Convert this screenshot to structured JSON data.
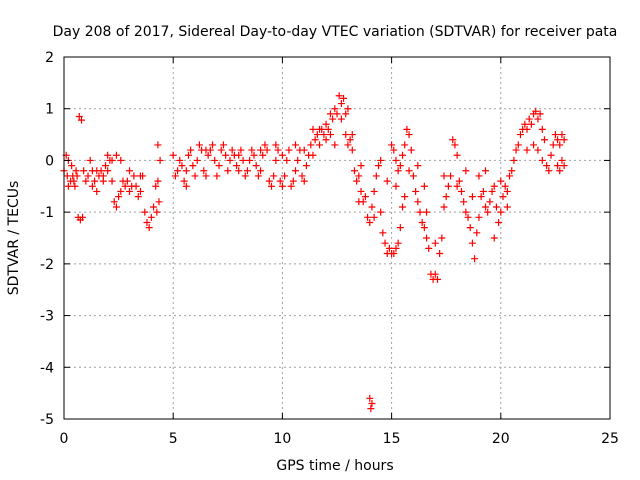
{
  "chart_data": {
    "type": "scatter",
    "title": "Day 208 of 2017, Sidereal Day-to-day VTEC variation (SDTVAR) for receiver pata",
    "xlabel": "GPS time / hours",
    "ylabel": "SDTVAR / TECUs",
    "xlim": [
      0,
      25
    ],
    "ylim": [
      -5,
      2
    ],
    "xticks": [
      0,
      5,
      10,
      15,
      20,
      25
    ],
    "yticks": [
      -5,
      -4,
      -3,
      -2,
      -1,
      0,
      1,
      2
    ],
    "grid": true,
    "marker": "+",
    "color": "#ff0000",
    "series": [
      {
        "name": "SDTVAR",
        "points": [
          [
            0.0,
            -0.2
          ],
          [
            0.1,
            0.1
          ],
          [
            0.15,
            -0.3
          ],
          [
            0.2,
            0.0
          ],
          [
            0.3,
            -0.4
          ],
          [
            0.35,
            -0.1
          ],
          [
            0.45,
            -0.4
          ],
          [
            0.5,
            -0.5
          ],
          [
            0.55,
            -0.2
          ],
          [
            0.6,
            -0.3
          ],
          [
            0.65,
            -1.1
          ],
          [
            0.75,
            -1.15
          ],
          [
            0.85,
            -1.1
          ],
          [
            0.7,
            0.85
          ],
          [
            0.8,
            0.78
          ],
          [
            0.9,
            -0.2
          ],
          [
            1.0,
            -0.4
          ],
          [
            1.1,
            -0.3
          ],
          [
            1.2,
            0.0
          ],
          [
            1.3,
            -0.2
          ],
          [
            1.4,
            -0.4
          ],
          [
            1.5,
            -0.6
          ],
          [
            1.6,
            -0.3
          ],
          [
            1.7,
            -0.2
          ],
          [
            1.8,
            -0.3
          ],
          [
            1.9,
            -0.1
          ],
          [
            2.0,
            -0.2
          ],
          [
            2.1,
            0.0
          ],
          [
            2.2,
            -0.4
          ],
          [
            2.3,
            -0.8
          ],
          [
            2.4,
            -0.9
          ],
          [
            2.5,
            -0.7
          ],
          [
            2.6,
            -0.6
          ],
          [
            2.7,
            -0.4
          ],
          [
            2.8,
            -0.5
          ],
          [
            2.9,
            -0.4
          ],
          [
            3.0,
            -0.6
          ],
          [
            3.1,
            -0.5
          ],
          [
            3.2,
            -0.3
          ],
          [
            3.3,
            -0.5
          ],
          [
            3.4,
            -0.7
          ],
          [
            3.5,
            -0.6
          ],
          [
            3.6,
            -0.3
          ],
          [
            3.7,
            -1.0
          ],
          [
            3.8,
            -1.2
          ],
          [
            3.9,
            -1.3
          ],
          [
            4.0,
            -1.1
          ],
          [
            4.1,
            -0.9
          ],
          [
            4.2,
            -0.5
          ],
          [
            4.3,
            -0.4
          ],
          [
            4.4,
            0.0
          ],
          [
            4.3,
            0.3
          ],
          [
            4.25,
            -1.0
          ],
          [
            4.35,
            -0.8
          ],
          [
            2.0,
            0.1
          ],
          [
            2.2,
            0.0
          ],
          [
            2.4,
            0.1
          ],
          [
            2.6,
            0.0
          ],
          [
            1.5,
            -0.2
          ],
          [
            1.8,
            -0.4
          ],
          [
            5.0,
            0.1
          ],
          [
            5.1,
            -0.3
          ],
          [
            5.2,
            -0.2
          ],
          [
            5.3,
            0.0
          ],
          [
            5.4,
            -0.1
          ],
          [
            5.5,
            -0.4
          ],
          [
            5.6,
            -0.2
          ],
          [
            5.7,
            0.1
          ],
          [
            5.8,
            0.2
          ],
          [
            5.9,
            -0.1
          ],
          [
            6.0,
            -0.3
          ],
          [
            6.1,
            0.0
          ],
          [
            6.2,
            0.3
          ],
          [
            6.3,
            0.2
          ],
          [
            6.4,
            -0.2
          ],
          [
            6.5,
            -0.3
          ],
          [
            6.6,
            0.1
          ],
          [
            6.7,
            0.2
          ],
          [
            6.8,
            0.3
          ],
          [
            6.9,
            0.0
          ],
          [
            7.0,
            -0.3
          ],
          [
            7.1,
            -0.1
          ],
          [
            7.2,
            0.2
          ],
          [
            7.3,
            0.3
          ],
          [
            7.4,
            0.1
          ],
          [
            7.5,
            -0.2
          ],
          [
            7.6,
            0.0
          ],
          [
            7.7,
            0.2
          ],
          [
            7.8,
            0.1
          ],
          [
            7.9,
            -0.1
          ],
          [
            8.0,
            0.1
          ],
          [
            8.1,
            0.2
          ],
          [
            8.2,
            0.0
          ],
          [
            8.3,
            -0.3
          ],
          [
            8.4,
            -0.2
          ],
          [
            8.5,
            0.0
          ],
          [
            8.6,
            0.2
          ],
          [
            8.7,
            0.1
          ],
          [
            8.8,
            -0.1
          ],
          [
            8.9,
            -0.3
          ],
          [
            9.0,
            -0.2
          ],
          [
            9.1,
            0.1
          ],
          [
            9.2,
            0.3
          ],
          [
            9.3,
            0.2
          ],
          [
            9.4,
            -0.4
          ],
          [
            9.5,
            -0.5
          ],
          [
            9.6,
            -0.3
          ],
          [
            9.7,
            0.0
          ],
          [
            9.8,
            0.2
          ],
          [
            9.9,
            -0.4
          ],
          [
            10.0,
            -0.5
          ],
          [
            10.1,
            -0.3
          ],
          [
            10.2,
            0.0
          ],
          [
            10.3,
            0.2
          ],
          [
            10.4,
            -0.5
          ],
          [
            10.5,
            -0.4
          ],
          [
            10.6,
            -0.2
          ],
          [
            10.7,
            0.0
          ],
          [
            10.8,
            0.2
          ],
          [
            10.9,
            -0.3
          ],
          [
            11.0,
            -0.4
          ],
          [
            11.1,
            -0.1
          ],
          [
            11.2,
            0.1
          ],
          [
            11.3,
            0.3
          ],
          [
            11.4,
            0.1
          ],
          [
            11.5,
            0.4
          ],
          [
            11.6,
            0.5
          ],
          [
            11.7,
            0.3
          ],
          [
            11.8,
            0.6
          ],
          [
            11.9,
            0.5
          ],
          [
            12.0,
            0.7
          ],
          [
            12.1,
            0.6
          ],
          [
            12.2,
            0.9
          ],
          [
            12.3,
            0.8
          ],
          [
            12.4,
            1.0
          ],
          [
            12.5,
            0.9
          ],
          [
            12.6,
            1.25
          ],
          [
            12.7,
            1.1
          ],
          [
            12.8,
            1.2
          ],
          [
            12.9,
            0.9
          ],
          [
            13.0,
            1.0
          ],
          [
            13.1,
            0.4
          ],
          [
            13.2,
            0.2
          ],
          [
            12.7,
            0.8
          ],
          [
            12.9,
            0.5
          ],
          [
            13.0,
            0.3
          ],
          [
            13.3,
            -0.2
          ],
          [
            13.4,
            -0.4
          ],
          [
            13.5,
            -0.3
          ],
          [
            13.6,
            -0.6
          ],
          [
            13.7,
            -0.8
          ],
          [
            13.8,
            -0.7
          ],
          [
            13.9,
            -1.1
          ],
          [
            14.0,
            -1.2
          ],
          [
            14.1,
            -0.9
          ],
          [
            14.2,
            -0.6
          ],
          [
            14.3,
            -0.3
          ],
          [
            14.4,
            -0.1
          ],
          [
            14.5,
            -1.0
          ],
          [
            14.6,
            -1.4
          ],
          [
            14.7,
            -1.6
          ],
          [
            14.8,
            -1.8
          ],
          [
            14.9,
            -1.7
          ],
          [
            15.0,
            -1.8
          ],
          [
            15.1,
            -1.8
          ],
          [
            15.2,
            -1.7
          ],
          [
            15.3,
            -1.6
          ],
          [
            15.4,
            -1.3
          ],
          [
            15.5,
            -0.9
          ],
          [
            15.6,
            -0.7
          ],
          [
            15.0,
            0.3
          ],
          [
            15.1,
            0.2
          ],
          [
            15.2,
            0.0
          ],
          [
            15.3,
            -0.2
          ],
          [
            15.4,
            -0.1
          ],
          [
            15.5,
            0.1
          ],
          [
            15.6,
            0.3
          ],
          [
            15.7,
            0.6
          ],
          [
            15.8,
            0.5
          ],
          [
            15.9,
            0.2
          ],
          [
            16.0,
            -0.3
          ],
          [
            16.1,
            -0.6
          ],
          [
            16.2,
            -0.8
          ],
          [
            16.3,
            -1.0
          ],
          [
            16.4,
            -1.2
          ],
          [
            16.5,
            -1.3
          ],
          [
            16.6,
            -1.5
          ],
          [
            16.7,
            -1.7
          ],
          [
            16.8,
            -2.2
          ],
          [
            16.9,
            -2.3
          ],
          [
            17.0,
            -2.2
          ],
          [
            17.1,
            -2.3
          ],
          [
            17.2,
            -1.8
          ],
          [
            17.3,
            -1.5
          ],
          [
            17.4,
            -0.9
          ],
          [
            17.5,
            -0.7
          ],
          [
            17.6,
            -0.5
          ],
          [
            17.7,
            -0.3
          ],
          [
            17.8,
            0.4
          ],
          [
            17.9,
            0.3
          ],
          [
            18.0,
            0.1
          ],
          [
            18.1,
            -0.4
          ],
          [
            18.2,
            -0.6
          ],
          [
            18.3,
            -0.8
          ],
          [
            18.4,
            -1.0
          ],
          [
            18.5,
            -1.1
          ],
          [
            18.6,
            -1.3
          ],
          [
            18.7,
            -1.6
          ],
          [
            18.8,
            -1.9
          ],
          [
            18.9,
            -1.4
          ],
          [
            19.0,
            -1.1
          ],
          [
            19.1,
            -0.7
          ],
          [
            19.2,
            -0.6
          ],
          [
            19.3,
            -0.9
          ],
          [
            19.4,
            -1.0
          ],
          [
            19.5,
            -0.8
          ],
          [
            19.6,
            -0.6
          ],
          [
            19.7,
            -0.5
          ],
          [
            19.8,
            -0.9
          ],
          [
            19.9,
            -1.2
          ],
          [
            20.0,
            -1.0
          ],
          [
            20.1,
            -0.7
          ],
          [
            20.2,
            -0.5
          ],
          [
            20.3,
            -0.6
          ],
          [
            20.4,
            -0.3
          ],
          [
            20.5,
            -0.2
          ],
          [
            20.6,
            0.0
          ],
          [
            20.7,
            0.2
          ],
          [
            20.8,
            0.3
          ],
          [
            20.9,
            0.5
          ],
          [
            21.0,
            0.6
          ],
          [
            21.1,
            0.7
          ],
          [
            21.2,
            0.6
          ],
          [
            21.3,
            0.8
          ],
          [
            21.4,
            0.7
          ],
          [
            21.5,
            0.9
          ],
          [
            21.6,
            0.95
          ],
          [
            21.7,
            0.8
          ],
          [
            21.8,
            0.9
          ],
          [
            21.9,
            0.6
          ],
          [
            22.0,
            0.4
          ],
          [
            21.5,
            0.3
          ],
          [
            21.7,
            0.2
          ],
          [
            21.9,
            0.0
          ],
          [
            22.1,
            -0.1
          ],
          [
            22.2,
            -0.2
          ],
          [
            22.3,
            0.1
          ],
          [
            22.4,
            0.3
          ],
          [
            22.5,
            0.5
          ],
          [
            22.6,
            0.4
          ],
          [
            22.7,
            0.3
          ],
          [
            22.8,
            0.5
          ],
          [
            22.9,
            0.4
          ],
          [
            22.6,
            -0.1
          ],
          [
            22.7,
            -0.2
          ],
          [
            22.8,
            0.0
          ],
          [
            22.9,
            -0.1
          ],
          [
            14.0,
            -4.6
          ],
          [
            14.05,
            -4.8
          ],
          [
            14.1,
            -4.7
          ],
          [
            0.2,
            -0.5
          ],
          [
            0.4,
            -0.3
          ],
          [
            1.3,
            -0.5
          ],
          [
            3.0,
            -0.2
          ],
          [
            3.5,
            -0.3
          ],
          [
            5.6,
            -0.5
          ],
          [
            6.5,
            0.2
          ],
          [
            8.0,
            -0.2
          ],
          [
            9.0,
            0.2
          ],
          [
            10.0,
            0.1
          ],
          [
            11.0,
            0.2
          ],
          [
            12.0,
            0.4
          ],
          [
            13.5,
            -0.8
          ],
          [
            14.2,
            -1.1
          ],
          [
            16.5,
            -0.5
          ],
          [
            18.0,
            -0.5
          ],
          [
            19.0,
            -0.3
          ],
          [
            20.0,
            -0.4
          ],
          [
            13.2,
            0.5
          ],
          [
            13.6,
            -0.1
          ],
          [
            14.5,
            0.0
          ],
          [
            14.8,
            -0.4
          ],
          [
            15.2,
            -0.5
          ],
          [
            15.8,
            -0.2
          ],
          [
            16.2,
            -0.1
          ],
          [
            16.6,
            -1.0
          ],
          [
            17.0,
            -1.6
          ],
          [
            17.4,
            -0.3
          ],
          [
            18.4,
            -0.2
          ],
          [
            18.7,
            -0.7
          ],
          [
            19.3,
            -0.2
          ],
          [
            19.7,
            -1.5
          ],
          [
            20.3,
            -0.9
          ],
          [
            21.2,
            0.2
          ],
          [
            12.2,
            0.5
          ],
          [
            12.4,
            0.3
          ],
          [
            11.7,
            0.6
          ],
          [
            11.4,
            0.6
          ],
          [
            10.6,
            0.3
          ],
          [
            9.7,
            0.3
          ]
        ]
      }
    ]
  }
}
